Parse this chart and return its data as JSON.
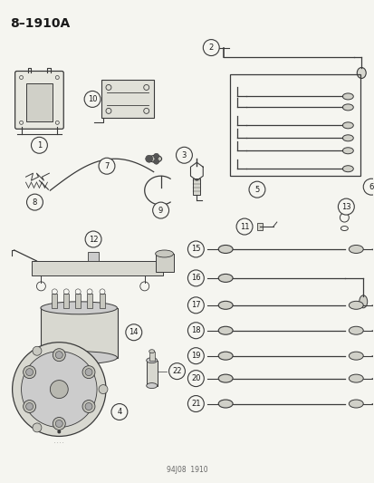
{
  "title": "8–1910A",
  "footer": "94J08  1910",
  "bg_color": "#f5f5f0",
  "line_color": "#3a3a3a",
  "text_color": "#1a1a1a",
  "figsize": [
    4.14,
    5.33
  ],
  "dpi": 100
}
